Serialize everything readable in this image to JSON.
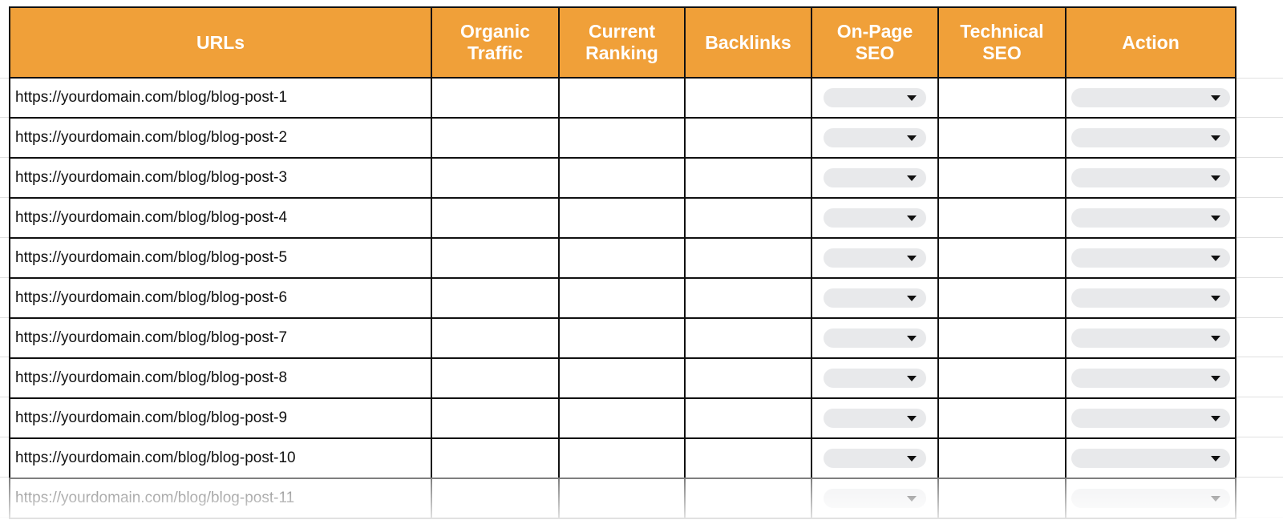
{
  "table": {
    "headers": [
      "URLs",
      "Organic Traffic",
      "Current Ranking",
      "Backlinks",
      "On-Page SEO",
      "Technical SEO",
      "Action"
    ],
    "rows": [
      {
        "url": "https://yourdomain.com/blog/blog-post-1"
      },
      {
        "url": "https://yourdomain.com/blog/blog-post-2"
      },
      {
        "url": "https://yourdomain.com/blog/blog-post-3"
      },
      {
        "url": "https://yourdomain.com/blog/blog-post-4"
      },
      {
        "url": "https://yourdomain.com/blog/blog-post-5"
      },
      {
        "url": "https://yourdomain.com/blog/blog-post-6"
      },
      {
        "url": "https://yourdomain.com/blog/blog-post-7"
      },
      {
        "url": "https://yourdomain.com/blog/blog-post-8"
      },
      {
        "url": "https://yourdomain.com/blog/blog-post-9"
      },
      {
        "url": "https://yourdomain.com/blog/blog-post-10"
      },
      {
        "url": "https://yourdomain.com/blog/blog-post-11"
      }
    ]
  },
  "colors": {
    "header_bg": "#f0a039",
    "header_text": "#ffffff",
    "dropdown_bg": "#e8e9eb",
    "border": "#111111"
  }
}
